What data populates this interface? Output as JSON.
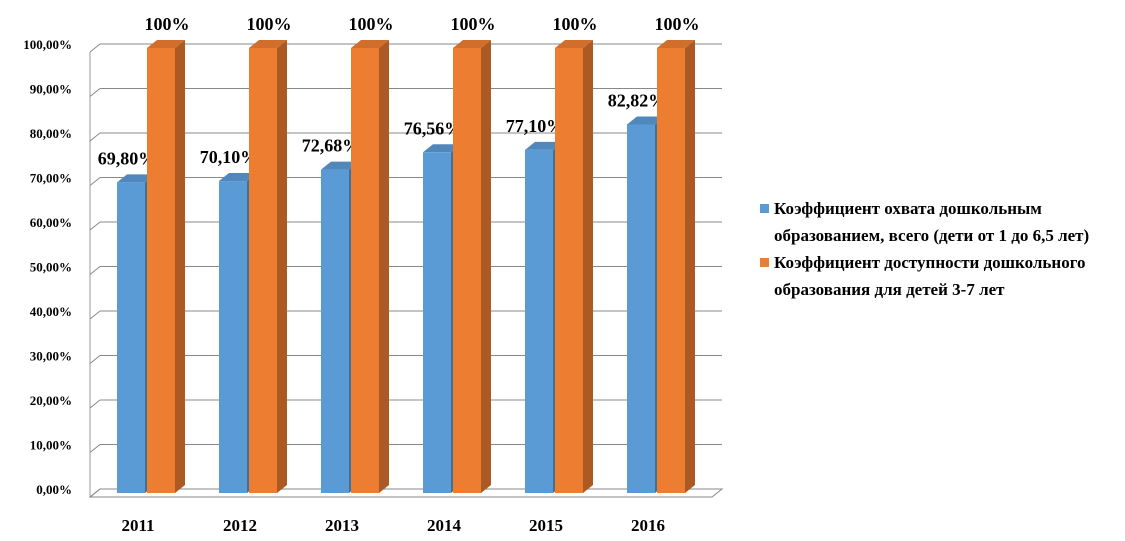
{
  "chart_data": {
    "type": "bar3d",
    "categories": [
      "2011",
      "2012",
      "2013",
      "2014",
      "2015",
      "2016"
    ],
    "series": [
      {
        "name": "Коэффициент охвата дошкольным образованием, всего (дети от 1 до 6,5 лет)",
        "color": "#5b9bd5",
        "values": [
          69.8,
          70.1,
          72.68,
          76.56,
          77.1,
          82.82
        ],
        "value_labels": [
          "69,80%",
          "70,10%",
          "72,68%",
          "76,56%",
          "77,10%",
          "82,82%"
        ]
      },
      {
        "name": "Коэффициент доступности дошкольного образования для детей 3-7 лет",
        "color": "#ed7d31",
        "values": [
          100,
          100,
          100,
          100,
          100,
          100
        ],
        "value_labels": [
          "100%",
          "100%",
          "100%",
          "100%",
          "100%",
          "100%"
        ]
      }
    ],
    "ylim": [
      0,
      100
    ],
    "yticks": [
      {
        "value": 0,
        "label": "0,00%"
      },
      {
        "value": 10,
        "label": "10,00%"
      },
      {
        "value": 20,
        "label": "20,00%"
      },
      {
        "value": 30,
        "label": "30,00%"
      },
      {
        "value": 40,
        "label": "40,00%"
      },
      {
        "value": 50,
        "label": "50,00%"
      },
      {
        "value": 60,
        "label": "60,00%"
      },
      {
        "value": 70,
        "label": "70,00%"
      },
      {
        "value": 80,
        "label": "80,00%"
      },
      {
        "value": 90,
        "label": "90,00%"
      },
      {
        "value": 100,
        "label": "100,00%"
      }
    ],
    "grid": true,
    "legend": "right"
  }
}
